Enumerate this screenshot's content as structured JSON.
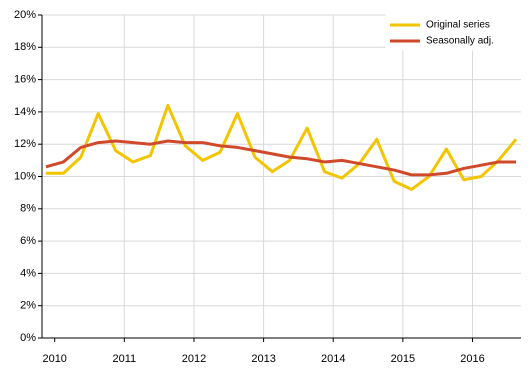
{
  "chart_data": {
    "type": "line",
    "categories": [
      "2010",
      null,
      null,
      null,
      "2011",
      null,
      null,
      null,
      "2012",
      null,
      null,
      null,
      "2013",
      null,
      null,
      null,
      "2014",
      null,
      null,
      null,
      "2015",
      null,
      null,
      null,
      "2016",
      null,
      null,
      null
    ],
    "series": [
      {
        "name": "Original series",
        "color": "#f2c500",
        "values": [
          10.2,
          10.2,
          11.2,
          13.9,
          11.6,
          10.9,
          11.3,
          14.4,
          11.9,
          11.0,
          11.5,
          13.9,
          11.2,
          10.3,
          11.0,
          13.0,
          10.3,
          9.9,
          10.8,
          12.3,
          9.7,
          9.2,
          10.0,
          11.7,
          9.8,
          10.0,
          11.0,
          12.3
        ]
      },
      {
        "name": "Seasonally adj.",
        "color": "#d0492b",
        "values": [
          10.6,
          10.9,
          11.8,
          12.1,
          12.2,
          12.1,
          12.0,
          12.2,
          12.1,
          12.1,
          11.9,
          11.8,
          11.6,
          11.4,
          11.2,
          11.1,
          10.9,
          11.0,
          10.8,
          10.6,
          10.4,
          10.1,
          10.1,
          10.2,
          10.5,
          10.7,
          10.9,
          10.9
        ]
      }
    ],
    "ylim": [
      0,
      20
    ],
    "yticks": [
      {
        "value": 0,
        "label": "0%"
      },
      {
        "value": 2,
        "label": "2%"
      },
      {
        "value": 4,
        "label": "4%"
      },
      {
        "value": 6,
        "label": "6%"
      },
      {
        "value": 8,
        "label": "8%"
      },
      {
        "value": 10,
        "label": "10%"
      },
      {
        "value": 12,
        "label": "12%"
      },
      {
        "value": 14,
        "label": "14%"
      },
      {
        "value": 16,
        "label": "16%"
      },
      {
        "value": 18,
        "label": "18%"
      },
      {
        "value": 20,
        "label": "20%"
      }
    ],
    "grid": true,
    "legend": "top-right"
  }
}
